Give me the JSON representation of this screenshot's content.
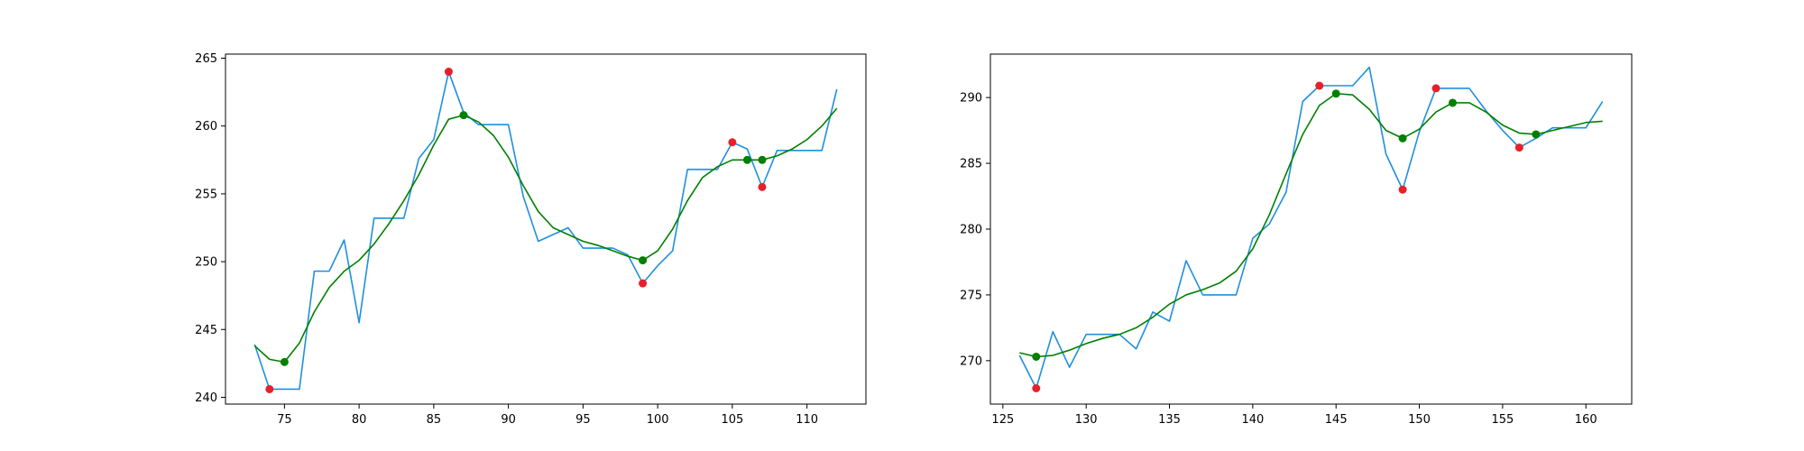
{
  "chart_data": [
    {
      "type": "line",
      "xlim": [
        71.05,
        113.95
      ],
      "ylim": [
        239.5,
        265.3
      ],
      "xticks": [
        "75",
        "80",
        "85",
        "90",
        "95",
        "100",
        "105",
        "110"
      ],
      "yticks": [
        "240",
        "245",
        "250",
        "255",
        "260",
        "265"
      ],
      "grid": false,
      "series": [
        {
          "role": "raw",
          "color": "#1f8fe0",
          "x": [
            73,
            74,
            75,
            76,
            77,
            78,
            79,
            80,
            81,
            82,
            83,
            84,
            85,
            86,
            87,
            88,
            89,
            90,
            91,
            92,
            93,
            94,
            95,
            96,
            97,
            98,
            99,
            100,
            101,
            102,
            103,
            104,
            105,
            106,
            107,
            108,
            109,
            110,
            111,
            112
          ],
          "y": [
            243.9,
            240.6,
            240.6,
            240.6,
            249.3,
            249.3,
            251.6,
            245.5,
            253.2,
            253.2,
            253.2,
            257.6,
            259.0,
            264.0,
            261.0,
            260.1,
            260.1,
            260.1,
            254.8,
            251.5,
            252.0,
            252.5,
            251.0,
            251.0,
            251.0,
            250.5,
            248.4,
            249.7,
            250.8,
            256.8,
            256.8,
            256.8,
            258.8,
            258.3,
            255.5,
            258.2,
            258.2,
            258.2,
            258.2,
            262.7
          ]
        },
        {
          "role": "smoothed",
          "color": "#008000",
          "x": [
            73,
            74,
            75,
            76,
            77,
            78,
            79,
            80,
            81,
            82,
            83,
            84,
            85,
            86,
            87,
            88,
            89,
            90,
            91,
            92,
            93,
            94,
            95,
            96,
            97,
            98,
            99,
            100,
            101,
            102,
            103,
            104,
            105,
            106,
            107,
            108,
            109,
            110,
            111,
            112
          ],
          "y": [
            243.8,
            242.8,
            242.6,
            244.0,
            246.3,
            248.1,
            249.3,
            250.1,
            251.3,
            252.8,
            254.5,
            256.4,
            258.6,
            260.5,
            260.8,
            260.3,
            259.3,
            257.7,
            255.6,
            253.7,
            252.5,
            252.0,
            251.5,
            251.2,
            250.8,
            250.4,
            250.1,
            250.8,
            252.4,
            254.5,
            256.2,
            257.0,
            257.5,
            257.5,
            257.5,
            257.8,
            258.3,
            259.0,
            260.0,
            261.3
          ]
        }
      ],
      "extrema_raw": {
        "color": "#e8202a",
        "points": [
          [
            74,
            240.6
          ],
          [
            86,
            264.0
          ],
          [
            99,
            248.4
          ],
          [
            105,
            258.8
          ],
          [
            107,
            255.5
          ]
        ]
      },
      "extrema_smoothed": {
        "color": "#008000",
        "points": [
          [
            75,
            242.6
          ],
          [
            87,
            260.8
          ],
          [
            99,
            250.1
          ],
          [
            106,
            257.5
          ],
          [
            107,
            257.5
          ]
        ]
      }
    },
    {
      "type": "line",
      "xlim": [
        124.25,
        162.75
      ],
      "ylim": [
        266.7,
        293.3
      ],
      "xticks": [
        "125",
        "130",
        "135",
        "140",
        "145",
        "150",
        "155",
        "160"
      ],
      "yticks": [
        "270",
        "275",
        "280",
        "285",
        "290"
      ],
      "grid": false,
      "series": [
        {
          "role": "raw",
          "color": "#1f8fe0",
          "x": [
            126,
            127,
            128,
            129,
            130,
            131,
            132,
            133,
            134,
            135,
            136,
            137,
            138,
            139,
            140,
            141,
            142,
            143,
            144,
            145,
            146,
            147,
            148,
            149,
            150,
            151,
            152,
            153,
            154,
            155,
            156,
            157,
            158,
            159,
            160,
            161
          ],
          "y": [
            270.4,
            267.9,
            272.2,
            269.5,
            272.0,
            272.0,
            272.0,
            270.9,
            273.7,
            273.0,
            277.6,
            275.0,
            275.0,
            275.0,
            279.3,
            280.4,
            282.8,
            289.7,
            290.9,
            290.9,
            290.9,
            292.3,
            285.7,
            283.0,
            287.4,
            290.7,
            290.7,
            290.7,
            289.0,
            287.5,
            286.2,
            286.9,
            287.7,
            287.7,
            287.7,
            289.7
          ]
        },
        {
          "role": "smoothed",
          "color": "#008000",
          "x": [
            126,
            127,
            128,
            129,
            130,
            131,
            132,
            133,
            134,
            135,
            136,
            137,
            138,
            139,
            140,
            141,
            142,
            143,
            144,
            145,
            146,
            147,
            148,
            149,
            150,
            151,
            152,
            153,
            154,
            155,
            156,
            157,
            158,
            159,
            160,
            161
          ],
          "y": [
            270.6,
            270.3,
            270.4,
            270.8,
            271.3,
            271.7,
            272.0,
            272.5,
            273.3,
            274.3,
            275.0,
            275.4,
            275.9,
            276.8,
            278.5,
            281.1,
            284.2,
            287.2,
            289.4,
            290.3,
            290.2,
            289.1,
            287.5,
            286.9,
            287.6,
            288.9,
            289.6,
            289.6,
            288.9,
            287.9,
            287.3,
            287.2,
            287.5,
            287.8,
            288.1,
            288.2
          ]
        }
      ],
      "extrema_raw": {
        "color": "#e8202a",
        "points": [
          [
            127,
            267.9
          ],
          [
            144,
            290.9
          ],
          [
            149,
            283.0
          ],
          [
            151,
            290.7
          ],
          [
            156,
            286.2
          ]
        ]
      },
      "extrema_smoothed": {
        "color": "#008000",
        "points": [
          [
            127,
            270.3
          ],
          [
            145,
            290.3
          ],
          [
            149,
            286.9
          ],
          [
            152,
            289.6
          ],
          [
            157,
            287.2
          ]
        ]
      }
    }
  ]
}
